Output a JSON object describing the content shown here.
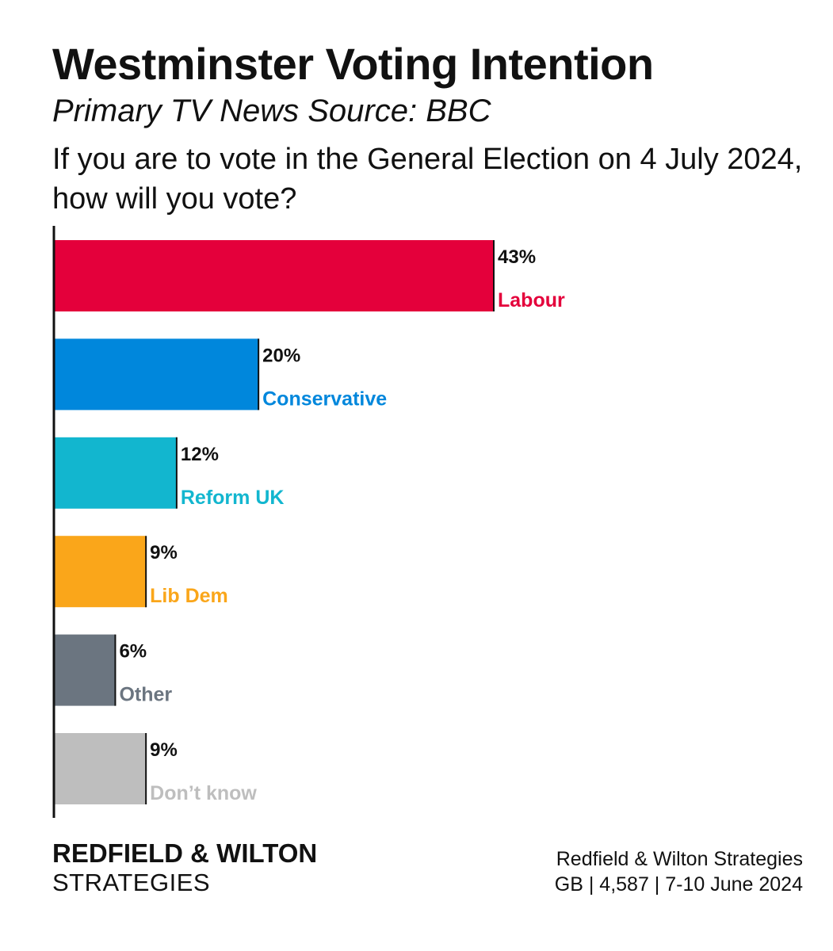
{
  "title": "Westminster Voting Intention",
  "subtitle": "Primary TV News Source: BBC",
  "question": "If you are to vote in the General Election on 4 July 2024, how will you vote?",
  "chart_data": {
    "type": "bar",
    "orientation": "horizontal",
    "title": "Westminster Voting Intention",
    "subtitle": "Primary TV News Source: BBC",
    "xlabel": "",
    "ylabel": "",
    "xlim": [
      0,
      50
    ],
    "unit": "%",
    "categories": [
      "Labour",
      "Conservative",
      "Reform UK",
      "Lib Dem",
      "Other",
      "Don’t know"
    ],
    "values": [
      43,
      20,
      12,
      9,
      6,
      9
    ],
    "value_labels": [
      "43%",
      "20%",
      "12%",
      "9%",
      "6%",
      "9%"
    ],
    "colors": [
      "#E4003B",
      "#0087DC",
      "#12B6CF",
      "#FAA61A",
      "#6B7580",
      "#BEBEBE"
    ],
    "grid": false,
    "legend": "none"
  },
  "footer": {
    "brand_name": "REDFIELD & WILTON",
    "brand_sub": "STRATEGIES",
    "source_line1": "Redfield & Wilton Strategies",
    "source_line2": "GB | 4,587 | 7-10 June 2024"
  }
}
